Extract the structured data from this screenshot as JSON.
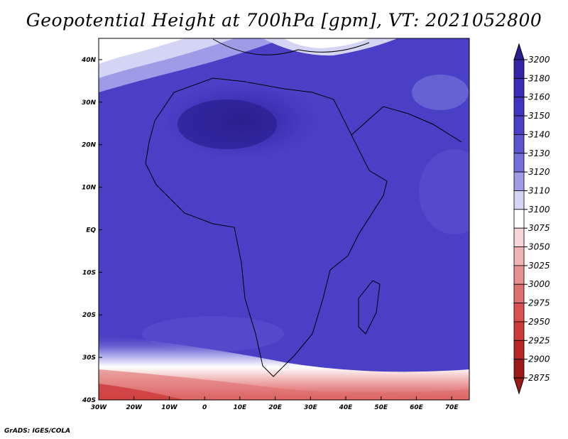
{
  "title": "Geopotential Height at 700hPa [gpm], VT: 2021052800",
  "footer": "GrADS: IGES/COLA",
  "map": {
    "region": "Africa",
    "lon_range": [
      -30,
      75
    ],
    "lat_range": [
      -40,
      45
    ],
    "x_ticks": [
      "30W",
      "20W",
      "10W",
      "0",
      "10E",
      "20E",
      "30E",
      "40E",
      "50E",
      "60E",
      "70E"
    ],
    "y_ticks": [
      "40N",
      "30N",
      "20N",
      "10N",
      "EQ",
      "10S",
      "20S",
      "30S",
      "40S"
    ]
  },
  "colorbar": {
    "levels": [
      "3200",
      "3180",
      "3160",
      "3150",
      "3140",
      "3130",
      "3120",
      "3110",
      "3100",
      "3075",
      "3050",
      "3025",
      "3000",
      "2975",
      "2950",
      "2925",
      "2900",
      "2875"
    ],
    "colors": [
      "#2a1f8f",
      "#3424a8",
      "#3a2db8",
      "#4035c0",
      "#4a40c6",
      "#5a54cf",
      "#7470da",
      "#9e9ce6",
      "#d4d4f4",
      "#ffffff",
      "#f6d6d6",
      "#f0b4b4",
      "#e89090",
      "#e07070",
      "#d85050",
      "#cc3a3a",
      "#b82626",
      "#9a1a1a"
    ]
  }
}
